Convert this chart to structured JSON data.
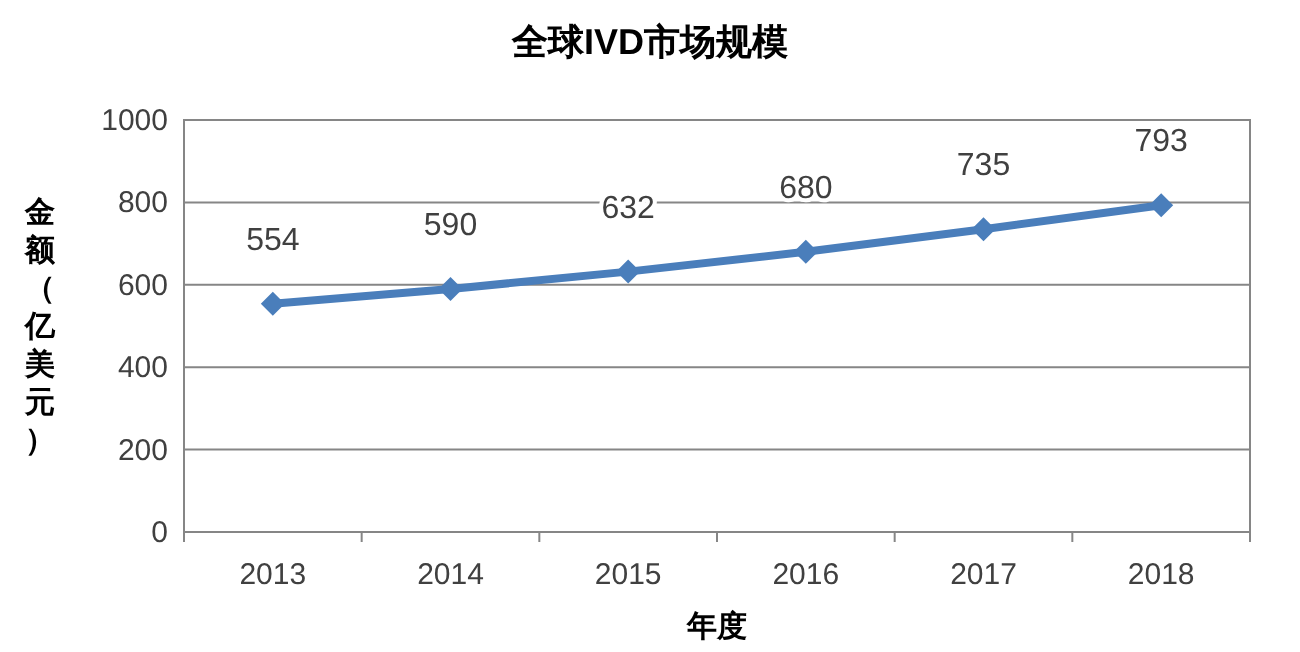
{
  "chart_data": {
    "type": "line",
    "title": "全球IVD市场规模",
    "xlabel": "年度",
    "ylabel": "金额（亿美元）",
    "categories": [
      "2013",
      "2014",
      "2015",
      "2016",
      "2017",
      "2018"
    ],
    "series": [
      {
        "color": "#4a7ebb",
        "values": [
          554,
          590,
          632,
          680,
          735,
          793
        ]
      }
    ],
    "ylim": [
      0,
      1000
    ],
    "yticks": [
      0,
      200,
      400,
      600,
      800,
      1000
    ],
    "grid": "y",
    "marker": "diamond",
    "line_style": "solid",
    "data_labels": true
  }
}
